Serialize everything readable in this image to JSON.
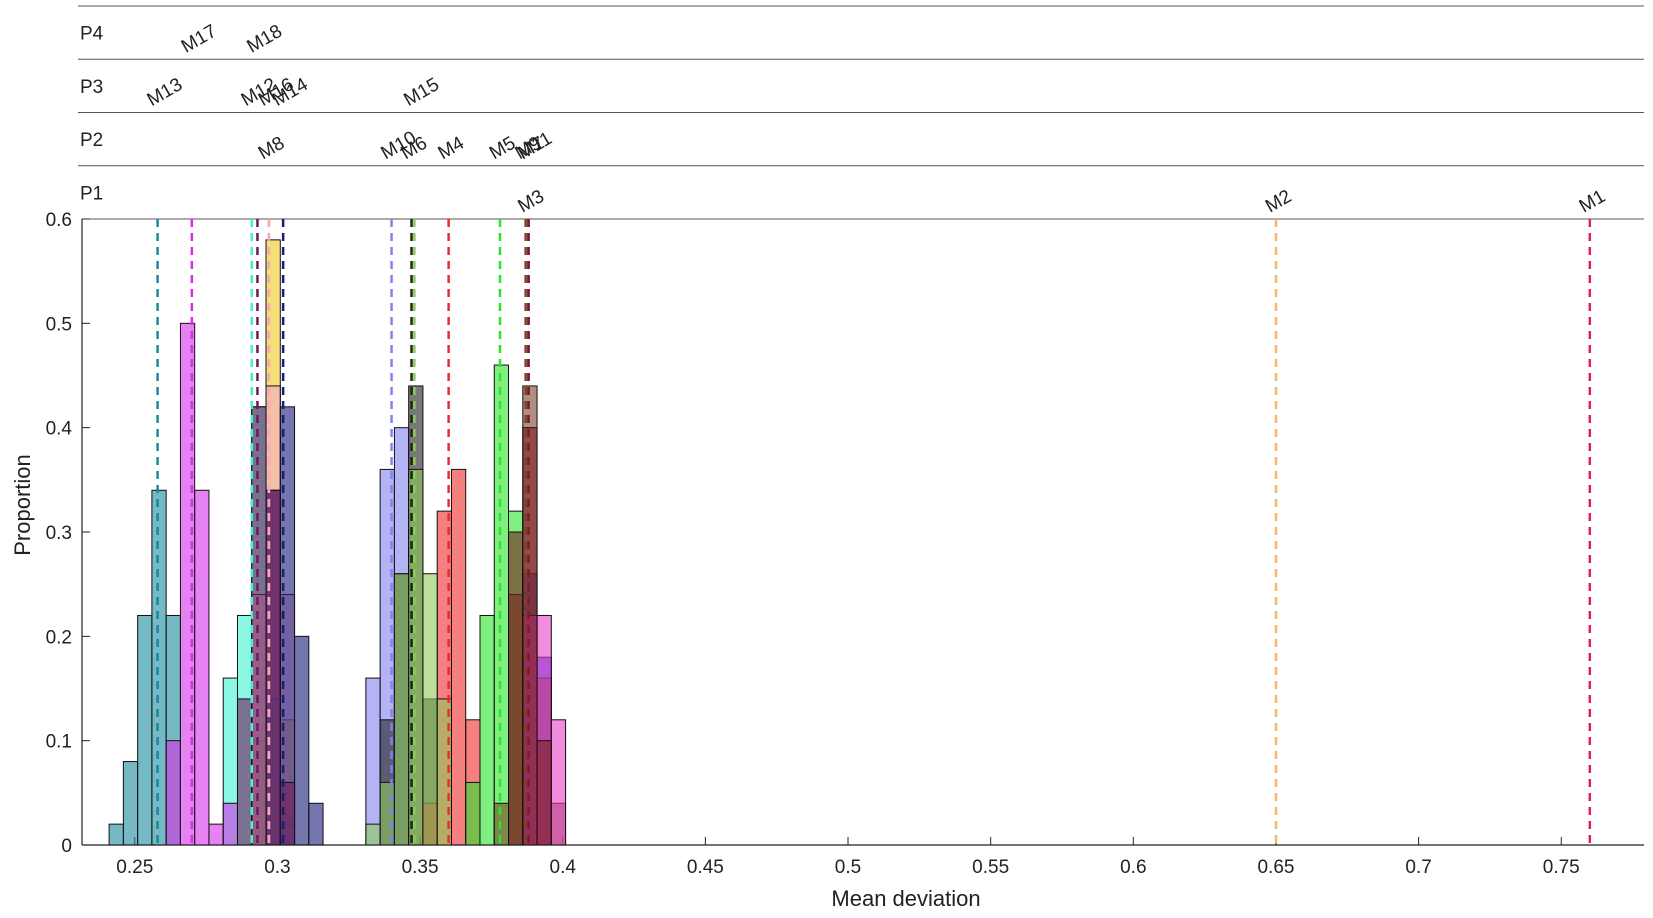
{
  "chart_data": {
    "type": "histogram",
    "xlabel": "Mean deviation",
    "ylabel": "Proportion",
    "xlim": [
      0.2315,
      0.779
    ],
    "ylim": [
      0,
      0.6
    ],
    "xticks": [
      0.25,
      0.3,
      0.35,
      0.4,
      0.45,
      0.5,
      0.55,
      0.6,
      0.65,
      0.7,
      0.75
    ],
    "yticks": [
      0,
      0.1,
      0.2,
      0.3,
      0.4,
      0.5,
      0.6
    ],
    "panels": [
      {
        "name": "P1",
        "series": [
          {
            "name": "M3",
            "color": "#1a1ae8",
            "mean": 0.388,
            "bins": [
              0.386,
              0.391,
              0.396
            ],
            "values": [
              0.26,
              0.18
            ]
          },
          {
            "name": "M2",
            "color": "#f8b46c",
            "mean": 0.65
          },
          {
            "name": "M1",
            "color": "#e6205a",
            "mean": 0.76
          }
        ]
      },
      {
        "name": "P2",
        "series": [
          {
            "name": "M8",
            "color": "#f2c81e",
            "mean": 0.297,
            "bins": [
              0.291,
              0.296,
              0.301,
              0.306
            ],
            "values": [
              0.1,
              0.58,
              0.12
            ]
          },
          {
            "name": "M10",
            "color": "#8080f0",
            "mean": 0.34,
            "bins": [
              0.331,
              0.336,
              0.341,
              0.346
            ],
            "values": [
              0.16,
              0.36,
              0.4
            ]
          },
          {
            "name": "M6",
            "color": "#202020",
            "mean": 0.347,
            "bins": [
              0.336,
              0.341,
              0.346,
              0.351,
              0.356
            ],
            "values": [
              0.12,
              0.26,
              0.44,
              0.14
            ]
          },
          {
            "name": "M4",
            "color": "#f02a2a",
            "mean": 0.36,
            "bins": [
              0.351,
              0.356,
              0.361,
              0.366,
              0.371
            ],
            "values": [
              0.04,
              0.32,
              0.36,
              0.12
            ]
          },
          {
            "name": "M5",
            "color": "#2ae62a",
            "mean": 0.378,
            "bins": [
              0.366,
              0.371,
              0.376,
              0.381,
              0.386
            ],
            "values": [
              0.06,
              0.22,
              0.46,
              0.32
            ]
          },
          {
            "name": "M9",
            "color": "#7a4428",
            "mean": 0.387,
            "bins": [
              0.376,
              0.381,
              0.386,
              0.391,
              0.396,
              0.401
            ],
            "values": [
              0.04,
              0.24,
              0.44,
              0.16,
              0.04
            ]
          },
          {
            "name": "M7",
            "color": "#e840c8",
            "mean": 0.388,
            "bins": [
              0.386,
              0.391,
              0.396,
              0.401
            ],
            "values": [
              0.22,
              0.22,
              0.12
            ]
          },
          {
            "name": "M11",
            "color": "#7a1c1c",
            "mean": 0.388,
            "bins": [
              0.381,
              0.386,
              0.391,
              0.396
            ],
            "values": [
              0.3,
              0.4,
              0.1
            ]
          }
        ]
      },
      {
        "name": "P3",
        "series": [
          {
            "name": "M13",
            "color": "#178a9c",
            "mean": 0.258,
            "bins": [
              0.241,
              0.246,
              0.251,
              0.256,
              0.261,
              0.266
            ],
            "values": [
              0.02,
              0.08,
              0.22,
              0.34,
              0.22
            ]
          },
          {
            "name": "M12",
            "color": "#3ef2d2",
            "mean": 0.291,
            "bins": [
              0.281,
              0.286,
              0.291,
              0.296,
              0.301,
              0.306
            ],
            "values": [
              0.16,
              0.22,
              0.42,
              0.14,
              0.02
            ]
          },
          {
            "name": "M16",
            "color": "#f4a8c8",
            "mean": 0.297,
            "bins": [
              0.291,
              0.296,
              0.301,
              0.306
            ],
            "values": [
              0.24,
              0.44,
              0.24
            ]
          },
          {
            "name": "M14",
            "color": "#1a1a7a",
            "mean": 0.302,
            "bins": [
              0.296,
              0.301,
              0.306,
              0.311,
              0.316
            ],
            "values": [
              0.34,
              0.42,
              0.2,
              0.04
            ]
          },
          {
            "name": "M15",
            "color": "#8ccc58",
            "mean": 0.348,
            "bins": [
              0.331,
              0.336,
              0.341,
              0.346,
              0.351,
              0.356,
              0.361
            ],
            "values": [
              0.02,
              0.06,
              0.26,
              0.36,
              0.26,
              0.14
            ]
          }
        ]
      },
      {
        "name": "P4",
        "series": [
          {
            "name": "M17",
            "color": "#d62ee8",
            "mean": 0.27,
            "bins": [
              0.261,
              0.266,
              0.271,
              0.276,
              0.281,
              0.286
            ],
            "values": [
              0.1,
              0.5,
              0.34,
              0.02,
              0.04
            ]
          },
          {
            "name": "M18",
            "color": "#701858",
            "mean": 0.293,
            "bins": [
              0.286,
              0.291,
              0.296,
              0.301,
              0.306
            ],
            "values": [
              0.14,
              0.42,
              0.34,
              0.06
            ]
          }
        ]
      }
    ]
  }
}
